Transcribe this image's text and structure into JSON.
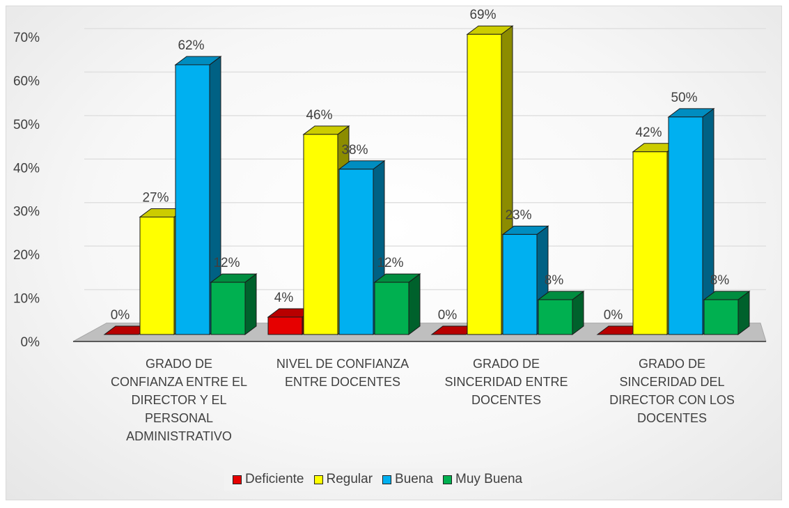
{
  "chart_data": {
    "type": "bar",
    "title": "",
    "xlabel": "",
    "ylabel": "",
    "ylim": [
      0,
      70
    ],
    "yticks": [
      "0%",
      "10%",
      "20%",
      "30%",
      "40%",
      "50%",
      "60%",
      "70%"
    ],
    "categories": [
      [
        "GRADO DE",
        "CONFIANZA ENTRE EL",
        "DIRECTOR Y EL",
        "PERSONAL",
        "ADMINISTRATIVO"
      ],
      [
        "NIVEL DE CONFIANZA",
        "ENTRE DOCENTES"
      ],
      [
        "GRADO DE",
        "SINCERIDAD ENTRE",
        "DOCENTES"
      ],
      [
        "GRADO DE",
        "SINCERIDAD DEL",
        "DIRECTOR CON LOS",
        "DOCENTES"
      ]
    ],
    "series": [
      {
        "name": "Deficiente",
        "color": "#e60000",
        "values": [
          0,
          4,
          0,
          0
        ],
        "labels": [
          "0%",
          "4%",
          "0%",
          "0%"
        ]
      },
      {
        "name": "Regular",
        "color": "#ffff00",
        "values": [
          27,
          46,
          69,
          42
        ],
        "labels": [
          "27%",
          "46%",
          "69%",
          "42%"
        ]
      },
      {
        "name": "Buena",
        "color": "#00b0f0",
        "values": [
          62,
          38,
          23,
          50
        ],
        "labels": [
          "62%",
          "38%",
          "23%",
          "50%"
        ]
      },
      {
        "name": "Muy Buena",
        "color": "#00b050",
        "values": [
          12,
          12,
          8,
          8
        ],
        "labels": [
          "12%",
          "12%",
          "8%",
          "8%"
        ]
      }
    ],
    "grid": true,
    "legend": "bottom",
    "projection": "3d"
  }
}
